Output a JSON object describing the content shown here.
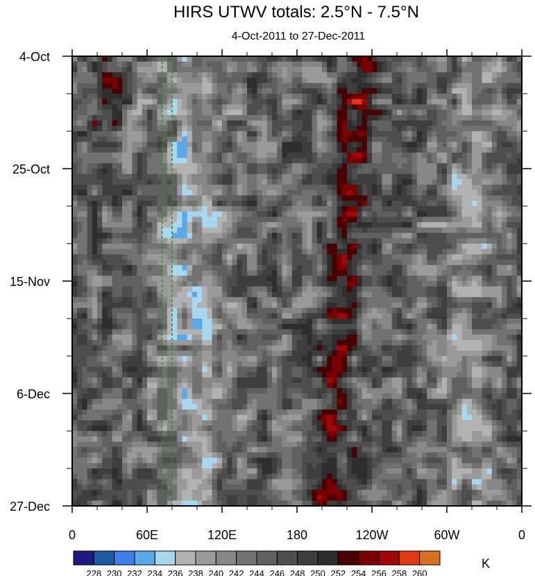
{
  "chart_data": {
    "type": "heatmap",
    "title": "HIRS UTWV totals: 2.5°N - 7.5°N",
    "subtitle": "4-Oct-2011 to 27-Dec-2011",
    "x_ticks": [
      {
        "label": "0",
        "lon": 0
      },
      {
        "label": "60E",
        "lon": 60
      },
      {
        "label": "120E",
        "lon": 120
      },
      {
        "label": "180",
        "lon": 180
      },
      {
        "label": "120W",
        "lon": 240
      },
      {
        "label": "60W",
        "lon": 300
      },
      {
        "label": "0",
        "lon": 360
      }
    ],
    "xlim": [
      0,
      360
    ],
    "y_ticks": [
      {
        "label": "4-Oct",
        "day": 0
      },
      {
        "label": "25-Oct",
        "day": 21
      },
      {
        "label": "15-Nov",
        "day": 42
      },
      {
        "label": "6-Dec",
        "day": 63
      },
      {
        "label": "27-Dec",
        "day": 84
      }
    ],
    "ylim": [
      0,
      84
    ],
    "colorbar": {
      "unit": "K",
      "levels": [
        228,
        230,
        232,
        234,
        236,
        238,
        240,
        242,
        244,
        246,
        248,
        250,
        252,
        254,
        256,
        258,
        260
      ],
      "colors": [
        "#1a1a80",
        "#1c5aa3",
        "#3f7fe6",
        "#5aa8e8",
        "#a8d8f0",
        "#b2b2b2",
        "#9a9a9a",
        "#878787",
        "#727272",
        "#606060",
        "#4e4e4e",
        "#3e3e3e",
        "#2e2e2e",
        "#4a0000",
        "#7a0000",
        "#a00808",
        "#e03a10",
        "#d87020"
      ]
    },
    "reference_lines": [
      {
        "lon": 72,
        "style": "dashed",
        "color": "#2e8b2e"
      },
      {
        "lon": 80,
        "style": "dashed",
        "color": "#2e8b2e"
      }
    ]
  }
}
